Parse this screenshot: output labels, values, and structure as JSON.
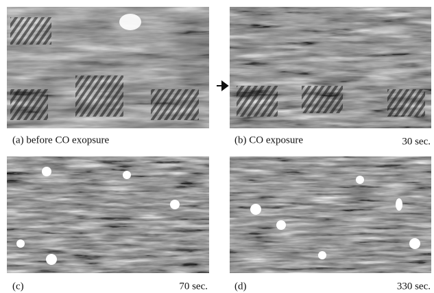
{
  "panels": [
    {
      "label": "(a) before CO exopsure"
    },
    {
      "label": "(b) CO exposure",
      "time": "30 sec."
    },
    {
      "label": "(c)",
      "time": "70 sec."
    },
    {
      "label": "(d)",
      "time": "330 sec."
    }
  ]
}
